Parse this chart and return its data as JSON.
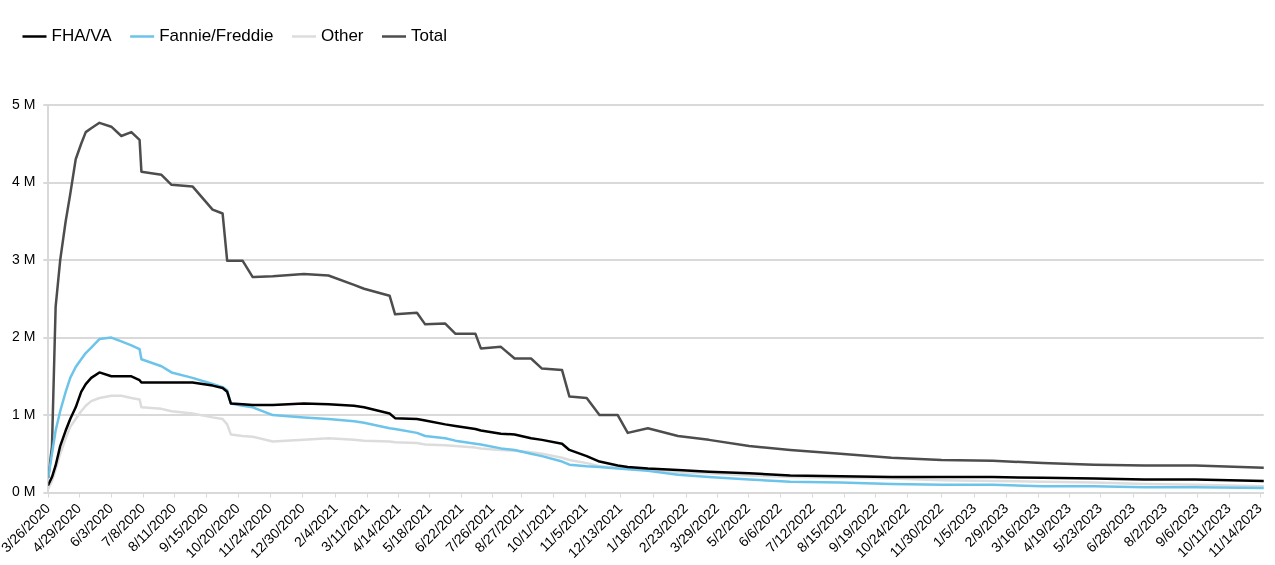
{
  "chart_data": {
    "type": "line",
    "x": [
      "2020-03-26",
      "2020-03-30",
      "2020-04-03",
      "2020-04-08",
      "2020-04-14",
      "2020-04-19",
      "2020-04-25",
      "2020-05-01",
      "2020-05-06",
      "2020-05-12",
      "2020-05-21",
      "2020-06-03",
      "2020-06-14",
      "2020-06-25",
      "2020-07-04",
      "2020-07-06",
      "2020-07-28",
      "2020-08-08",
      "2020-08-31",
      "2020-09-22",
      "2020-10-03",
      "2020-10-08",
      "2020-10-12",
      "2020-10-25",
      "2020-11-05",
      "2020-11-27",
      "2020-12-31",
      "2021-01-27",
      "2021-02-24",
      "2021-03-07",
      "2021-04-04",
      "2021-04-10",
      "2021-05-04",
      "2021-05-13",
      "2021-06-04",
      "2021-06-15",
      "2021-07-07",
      "2021-07-13",
      "2021-08-04",
      "2021-08-19",
      "2021-09-06",
      "2021-09-18",
      "2021-10-10",
      "2021-10-18",
      "2021-11-06",
      "2021-11-20",
      "2021-12-10",
      "2021-12-21",
      "2022-01-12",
      "2022-02-14",
      "2022-03-20",
      "2022-05-03",
      "2022-06-17",
      "2022-08-11",
      "2022-10-06",
      "2022-11-30",
      "2023-01-25",
      "2023-03-21",
      "2023-05-16",
      "2023-07-10",
      "2023-09-04",
      "2023-11-18"
    ],
    "series": [
      {
        "name": "FHA/VA",
        "color": "#000000",
        "values": [
          0.1,
          0.2,
          0.35,
          0.6,
          0.8,
          0.95,
          1.1,
          1.3,
          1.4,
          1.48,
          1.55,
          1.5,
          1.5,
          1.5,
          1.45,
          1.42,
          1.42,
          1.42,
          1.42,
          1.38,
          1.35,
          1.3,
          1.15,
          1.14,
          1.13,
          1.13,
          1.15,
          1.14,
          1.12,
          1.1,
          1.02,
          0.96,
          0.95,
          0.93,
          0.88,
          0.86,
          0.82,
          0.8,
          0.76,
          0.75,
          0.7,
          0.68,
          0.63,
          0.55,
          0.47,
          0.4,
          0.35,
          0.33,
          0.31,
          0.29,
          0.27,
          0.25,
          0.22,
          0.21,
          0.2,
          0.2,
          0.2,
          0.19,
          0.18,
          0.17,
          0.17,
          0.15
        ]
      },
      {
        "name": "Fannie/Freddie",
        "color": "#6cc4ea",
        "values": [
          0.2,
          0.5,
          0.8,
          1.05,
          1.3,
          1.48,
          1.62,
          1.72,
          1.8,
          1.87,
          1.98,
          2.0,
          1.95,
          1.9,
          1.85,
          1.72,
          1.63,
          1.55,
          1.48,
          1.4,
          1.36,
          1.32,
          1.15,
          1.12,
          1.1,
          1.0,
          0.97,
          0.95,
          0.92,
          0.9,
          0.83,
          0.82,
          0.77,
          0.73,
          0.7,
          0.67,
          0.63,
          0.62,
          0.57,
          0.55,
          0.5,
          0.47,
          0.4,
          0.36,
          0.34,
          0.33,
          0.31,
          0.3,
          0.28,
          0.23,
          0.2,
          0.17,
          0.14,
          0.13,
          0.11,
          0.1,
          0.1,
          0.08,
          0.08,
          0.07,
          0.07,
          0.06
        ]
      },
      {
        "name": "Other",
        "color": "#dcdcdc",
        "values": [
          0.05,
          0.15,
          0.3,
          0.5,
          0.7,
          0.85,
          0.95,
          1.05,
          1.12,
          1.18,
          1.22,
          1.25,
          1.25,
          1.22,
          1.2,
          1.1,
          1.08,
          1.05,
          1.02,
          0.97,
          0.95,
          0.88,
          0.75,
          0.73,
          0.72,
          0.66,
          0.68,
          0.7,
          0.68,
          0.67,
          0.66,
          0.65,
          0.64,
          0.62,
          0.61,
          0.6,
          0.58,
          0.57,
          0.55,
          0.54,
          0.52,
          0.5,
          0.45,
          0.42,
          0.38,
          0.34,
          0.32,
          0.31,
          0.29,
          0.26,
          0.25,
          0.22,
          0.2,
          0.19,
          0.18,
          0.16,
          0.15,
          0.14,
          0.13,
          0.11,
          0.1,
          0.08
        ]
      },
      {
        "name": "Total",
        "color": "#4d4d4d",
        "values": [
          0.2,
          0.6,
          2.4,
          3.0,
          3.5,
          3.85,
          4.3,
          4.5,
          4.65,
          4.7,
          4.77,
          4.72,
          4.6,
          4.65,
          4.55,
          4.14,
          4.1,
          3.97,
          3.95,
          3.65,
          3.6,
          2.99,
          2.99,
          2.99,
          2.78,
          2.79,
          2.82,
          2.8,
          2.68,
          2.63,
          2.54,
          2.3,
          2.32,
          2.17,
          2.18,
          2.05,
          2.05,
          1.86,
          1.88,
          1.73,
          1.73,
          1.6,
          1.58,
          1.24,
          1.22,
          1.0,
          1.0,
          0.77,
          0.83,
          0.73,
          0.68,
          0.6,
          0.55,
          0.5,
          0.45,
          0.42,
          0.41,
          0.38,
          0.36,
          0.35,
          0.35,
          0.32
        ]
      }
    ],
    "xlim": [
      "2020-03-26",
      "2023-11-18"
    ],
    "xticks": [
      {
        "value": "2020-03-26",
        "label": "3/26/2020"
      },
      {
        "value": "2020-04-29",
        "label": "4/29/2020"
      },
      {
        "value": "2020-06-03",
        "label": "6/3/2020"
      },
      {
        "value": "2020-07-08",
        "label": "7/8/2020"
      },
      {
        "value": "2020-08-11",
        "label": "8/11/2020"
      },
      {
        "value": "2020-09-15",
        "label": "9/15/2020"
      },
      {
        "value": "2020-10-20",
        "label": "10/20/2020"
      },
      {
        "value": "2020-11-24",
        "label": "11/24/2020"
      },
      {
        "value": "2020-12-30",
        "label": "12/30/2020"
      },
      {
        "value": "2021-02-04",
        "label": "2/4/2021"
      },
      {
        "value": "2021-03-11",
        "label": "3/11/2021"
      },
      {
        "value": "2021-04-14",
        "label": "4/14/2021"
      },
      {
        "value": "2021-05-18",
        "label": "5/18/2021"
      },
      {
        "value": "2021-06-22",
        "label": "6/22/2021"
      },
      {
        "value": "2021-07-26",
        "label": "7/26/2021"
      },
      {
        "value": "2021-08-27",
        "label": "8/27/2021"
      },
      {
        "value": "2021-10-01",
        "label": "10/1/2021"
      },
      {
        "value": "2021-11-05",
        "label": "11/5/2021"
      },
      {
        "value": "2021-12-13",
        "label": "12/13/2021"
      },
      {
        "value": "2022-01-18",
        "label": "1/18/2022"
      },
      {
        "value": "2022-02-23",
        "label": "2/23/2022"
      },
      {
        "value": "2022-03-29",
        "label": "3/29/2022"
      },
      {
        "value": "2022-05-02",
        "label": "5/2/2022"
      },
      {
        "value": "2022-06-06",
        "label": "6/6/2022"
      },
      {
        "value": "2022-07-12",
        "label": "7/12/2022"
      },
      {
        "value": "2022-08-15",
        "label": "8/15/2022"
      },
      {
        "value": "2022-09-19",
        "label": "9/19/2022"
      },
      {
        "value": "2022-10-24",
        "label": "10/24/2022"
      },
      {
        "value": "2022-11-30",
        "label": "11/30/2022"
      },
      {
        "value": "2023-01-05",
        "label": "1/5/2023"
      },
      {
        "value": "2023-02-09",
        "label": "2/9/2023"
      },
      {
        "value": "2023-03-16",
        "label": "3/16/2023"
      },
      {
        "value": "2023-04-19",
        "label": "4/19/2023"
      },
      {
        "value": "2023-05-23",
        "label": "5/23/2023"
      },
      {
        "value": "2023-06-28",
        "label": "6/28/2023"
      },
      {
        "value": "2023-08-02",
        "label": "8/2/2023"
      },
      {
        "value": "2023-09-06",
        "label": "9/6/2023"
      },
      {
        "value": "2023-10-11",
        "label": "10/11/2023"
      },
      {
        "value": "2023-11-14",
        "label": "11/14/2023"
      }
    ],
    "ylim": [
      0,
      5
    ],
    "yticks": [
      {
        "value": 0,
        "label": "0 M"
      },
      {
        "value": 1,
        "label": "1 M"
      },
      {
        "value": 2,
        "label": "2 M"
      },
      {
        "value": 3,
        "label": "3 M"
      },
      {
        "value": 4,
        "label": "4 M"
      },
      {
        "value": 5,
        "label": "5 M"
      }
    ],
    "grid": "y",
    "legend": "top left",
    "marker": "none",
    "line_style": "solid"
  }
}
